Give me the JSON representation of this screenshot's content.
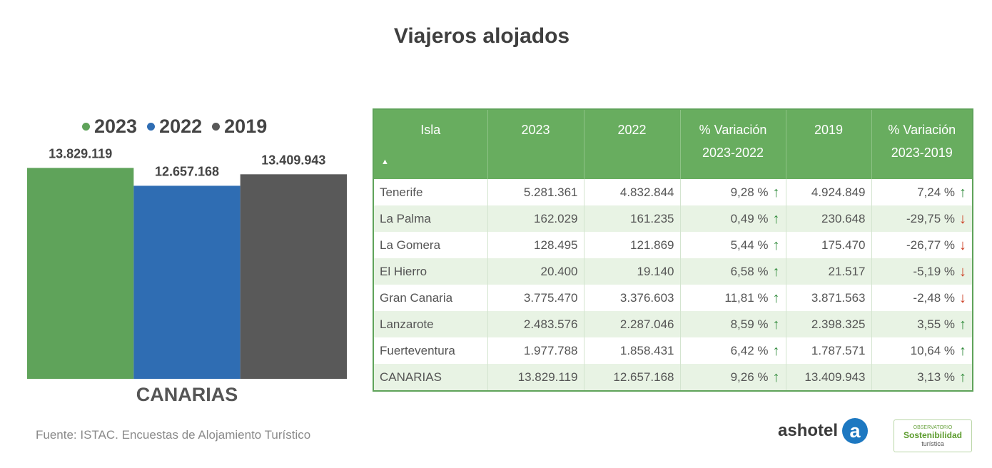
{
  "title": "Viajeros alojados",
  "chart_data": {
    "type": "bar",
    "categories": [
      "2023",
      "2022",
      "2019"
    ],
    "values": [
      13829119,
      12657168,
      13409943
    ],
    "value_labels": [
      "13.829.119",
      "12.657.168",
      "13.409.943"
    ],
    "colors": [
      "#5fa35a",
      "#2f6db3",
      "#595959"
    ],
    "xlabel": "CANARIAS",
    "ylim": [
      0,
      14500000
    ],
    "legend": "top",
    "grid": false
  },
  "source": "Fuente: ISTAC. Encuestas de Alojamiento Turístico",
  "table": {
    "headers": [
      {
        "l1": "Isla",
        "l2": ""
      },
      {
        "l1": "2023",
        "l2": ""
      },
      {
        "l1": "2022",
        "l2": ""
      },
      {
        "l1": "% Variación",
        "l2": "2023-2022"
      },
      {
        "l1": "2019",
        "l2": ""
      },
      {
        "l1": "% Variación",
        "l2": "2023-2019"
      }
    ],
    "sort_icon": "sort-up-icon",
    "rows": [
      {
        "isla": "Tenerife",
        "y2023": "5.281.361",
        "y2022": "4.832.844",
        "var1": "9,28 %",
        "dir1": "up",
        "y2019": "4.924.849",
        "var2": "7,24 %",
        "dir2": "up"
      },
      {
        "isla": "La Palma",
        "y2023": "162.029",
        "y2022": "161.235",
        "var1": "0,49 %",
        "dir1": "up",
        "y2019": "230.648",
        "var2": "-29,75 %",
        "dir2": "down"
      },
      {
        "isla": "La Gomera",
        "y2023": "128.495",
        "y2022": "121.869",
        "var1": "5,44 %",
        "dir1": "up",
        "y2019": "175.470",
        "var2": "-26,77 %",
        "dir2": "down"
      },
      {
        "isla": "El Hierro",
        "y2023": "20.400",
        "y2022": "19.140",
        "var1": "6,58 %",
        "dir1": "up",
        "y2019": "21.517",
        "var2": "-5,19 %",
        "dir2": "down"
      },
      {
        "isla": "Gran Canaria",
        "y2023": "3.775.470",
        "y2022": "3.376.603",
        "var1": "11,81 %",
        "dir1": "up",
        "y2019": "3.871.563",
        "var2": "-2,48 %",
        "dir2": "down"
      },
      {
        "isla": "Lanzarote",
        "y2023": "2.483.576",
        "y2022": "2.287.046",
        "var1": "8,59 %",
        "dir1": "up",
        "y2019": "2.398.325",
        "var2": "3,55 %",
        "dir2": "up"
      },
      {
        "isla": "Fuerteventura",
        "y2023": "1.977.788",
        "y2022": "1.858.431",
        "var1": "6,42 %",
        "dir1": "up",
        "y2019": "1.787.571",
        "var2": "10,64 %",
        "dir2": "up"
      },
      {
        "isla": "CANARIAS",
        "y2023": "13.829.119",
        "y2022": "12.657.168",
        "var1": "9,26 %",
        "dir1": "up",
        "y2019": "13.409.943",
        "var2": "3,13 %",
        "dir2": "up"
      }
    ]
  },
  "logos": {
    "ashotel_text": "ashotel",
    "ashotel_badge": "a",
    "obs_small": "OBSERVATORIO",
    "obs_main": "Sostenibilidad",
    "obs_sub": "turística"
  }
}
